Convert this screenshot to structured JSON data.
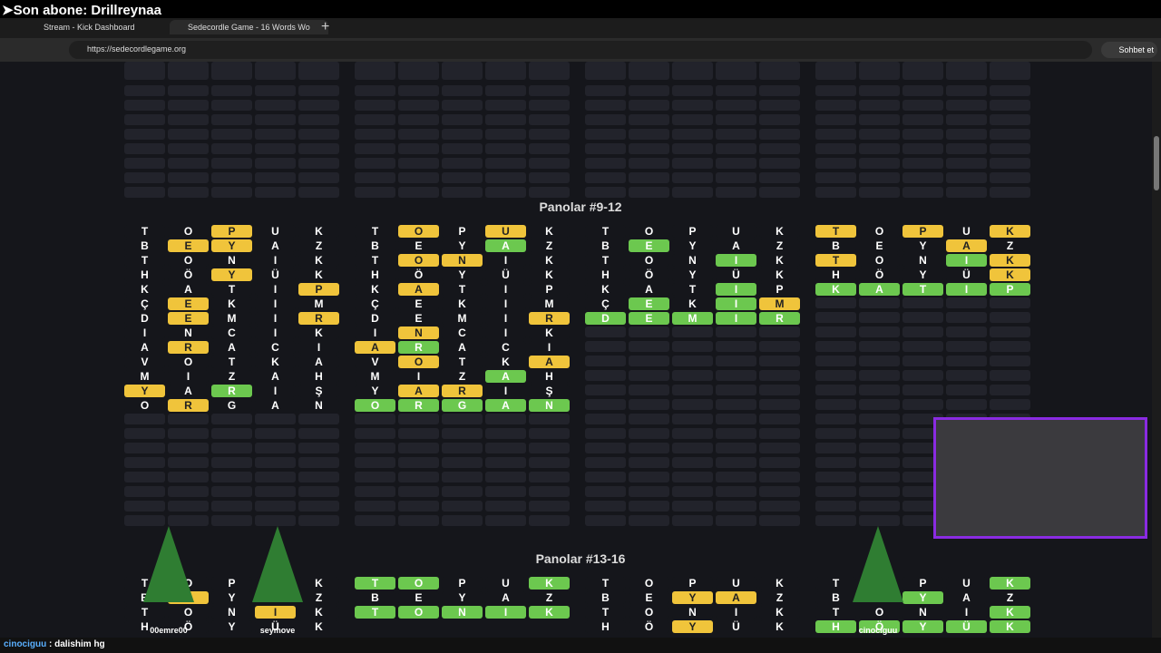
{
  "overlay": {
    "last_sub": "➤Son abone: Drillreynaa"
  },
  "browser": {
    "tabs": [
      "Stream - Kick Dashboard",
      "Sedecordle Game - 16 Words Wo"
    ],
    "url": "https://sedecordlegame.org",
    "chat_button": "Sohbet et"
  },
  "sections": [
    {
      "title": "Panolar #9-12",
      "boards": [
        {
          "rows": [
            {
              "word": "TOPUK",
              "marks": "--y--"
            },
            {
              "word": "BEYAZ",
              "marks": "-yy--"
            },
            {
              "word": "TONIK",
              "marks": "-----"
            },
            {
              "word": "HÖYÜK",
              "marks": "--y--"
            },
            {
              "word": "KATIP",
              "marks": "----y"
            },
            {
              "word": "ÇEKIM",
              "marks": "-y---"
            },
            {
              "word": "DEMIR",
              "marks": "-y--y"
            },
            {
              "word": "INCIK",
              "marks": "-----"
            },
            {
              "word": "ARACI",
              "marks": "-y---"
            },
            {
              "word": "VOTKA",
              "marks": "-----"
            },
            {
              "word": "MIZAH",
              "marks": "-----"
            },
            {
              "word": "YARIŞ",
              "marks": "y-g--"
            },
            {
              "word": "ORGAN",
              "marks": "-y---"
            }
          ]
        },
        {
          "rows": [
            {
              "word": "TOPUK",
              "marks": "-y-y-"
            },
            {
              "word": "BEYAZ",
              "marks": "---g-"
            },
            {
              "word": "TONIK",
              "marks": "-yy--"
            },
            {
              "word": "HÖYÜK",
              "marks": "-----"
            },
            {
              "word": "KATIP",
              "marks": "-y---"
            },
            {
              "word": "ÇEKIM",
              "marks": "-----"
            },
            {
              "word": "DEMIR",
              "marks": "----y"
            },
            {
              "word": "INCIK",
              "marks": "-y---"
            },
            {
              "word": "ARACI",
              "marks": "yg---"
            },
            {
              "word": "VOTKA",
              "marks": "-y--y"
            },
            {
              "word": "MIZAH",
              "marks": "---g-"
            },
            {
              "word": "YARIŞ",
              "marks": "-yy--"
            },
            {
              "word": "ORGAN",
              "marks": "ggggg"
            }
          ]
        },
        {
          "rows": [
            {
              "word": "TOPUK",
              "marks": "-----"
            },
            {
              "word": "BEYAZ",
              "marks": "-g---"
            },
            {
              "word": "TONIK",
              "marks": "---g-"
            },
            {
              "word": "HÖYÜK",
              "marks": "-----"
            },
            {
              "word": "KATIP",
              "marks": "---g-"
            },
            {
              "word": "ÇEKIM",
              "marks": "-g-gy"
            },
            {
              "word": "DEMIR",
              "marks": "ggggg"
            }
          ]
        },
        {
          "rows": [
            {
              "word": "TOPUK",
              "marks": "y-y-y"
            },
            {
              "word": "BEYAZ",
              "marks": "---y-"
            },
            {
              "word": "TONIK",
              "marks": "y--gy"
            },
            {
              "word": "HÖYÜK",
              "marks": "----y"
            },
            {
              "word": "KATIP",
              "marks": "ggggg"
            }
          ]
        }
      ]
    },
    {
      "title": "Panolar #13-16",
      "boards": [
        {
          "rows": [
            {
              "word": "TOPUK",
              "marks": "-----"
            },
            {
              "word": "BEYAZ",
              "marks": "-y---"
            },
            {
              "word": "TONIK",
              "marks": "---y-"
            },
            {
              "word": "HÖYÜK",
              "marks": "-----"
            }
          ]
        },
        {
          "rows": [
            {
              "word": "TOPUK",
              "marks": "gg--g"
            },
            {
              "word": "BEYAZ",
              "marks": "-----"
            },
            {
              "word": "TONIK",
              "marks": "ggggg"
            }
          ]
        },
        {
          "rows": [
            {
              "word": "TOPUK",
              "marks": "-----"
            },
            {
              "word": "BEYAZ",
              "marks": "--yy-"
            },
            {
              "word": "TONIK",
              "marks": "-----"
            },
            {
              "word": "HÖYÜK",
              "marks": "--y--"
            }
          ]
        },
        {
          "rows": [
            {
              "word": "TOPUK",
              "marks": "----g"
            },
            {
              "word": "BEYAZ",
              "marks": "--g--"
            },
            {
              "word": "TONIK",
              "marks": "----g"
            },
            {
              "word": "HÖYÜK",
              "marks": "ggggg"
            }
          ]
        }
      ]
    }
  ],
  "viewers": [
    "00emre00",
    "seymove",
    "cinociguu"
  ],
  "chat": {
    "user": "cinociguu",
    "message": ": dalishim hg"
  }
}
